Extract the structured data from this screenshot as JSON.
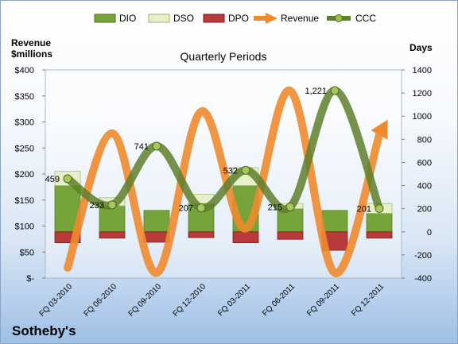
{
  "company": "Sotheby's",
  "chart_data": {
    "type": "bar",
    "title": "Quarterly Periods",
    "ylabel_left": "Revenue $millions",
    "ylabel_right": "Days",
    "categories": [
      "FQ 03-2010",
      "FQ 06-2010",
      "FQ 09-2010",
      "FQ 12-2010",
      "FQ 03-2011",
      "FQ 06-2011",
      "FQ 09-2011",
      "FQ 12-2011"
    ],
    "y_left_ticks": [
      "$-",
      "$50",
      "$100",
      "$150",
      "$200",
      "$250",
      "$300",
      "$350",
      "$400"
    ],
    "ylim_left": [
      0,
      400
    ],
    "ylim_right": [
      -400,
      1400
    ],
    "y_right_ticks": [
      "-400",
      "-200",
      "0",
      "200",
      "400",
      "600",
      "800",
      "1000",
      "1200",
      "1400"
    ],
    "legend": [
      "DIO",
      "DSO",
      "DPO",
      "Revenue",
      "CCC"
    ],
    "legend_position": "top",
    "series": [
      {
        "name": "DIO",
        "axis": "right",
        "color": "#76a33a",
        "values": [
          400,
          225,
          185,
          245,
          400,
          200,
          185,
          160
        ]
      },
      {
        "name": "DSO",
        "axis": "right",
        "color": "#e6f0cc",
        "values": [
          125,
          70,
          0,
          80,
          155,
          45,
          0,
          85
        ]
      },
      {
        "name": "DPO",
        "axis": "right",
        "color": "#b83a3a",
        "values": [
          -95,
          -55,
          -90,
          -50,
          -95,
          -65,
          -160,
          -55
        ]
      },
      {
        "name": "Revenue",
        "axis": "left",
        "color": "#ef8a2e",
        "values": [
          20,
          278,
          10,
          320,
          95,
          360,
          10,
          275
        ]
      },
      {
        "name": "CCC",
        "axis": "right",
        "color": "#5e7f2c",
        "values": [
          459,
          233,
          741,
          207,
          532,
          215,
          1221,
          201
        ]
      }
    ],
    "ccc_labels": [
      "459",
      "233",
      "741",
      "207",
      "532",
      "215",
      "1,221",
      "201"
    ],
    "grid": false
  }
}
